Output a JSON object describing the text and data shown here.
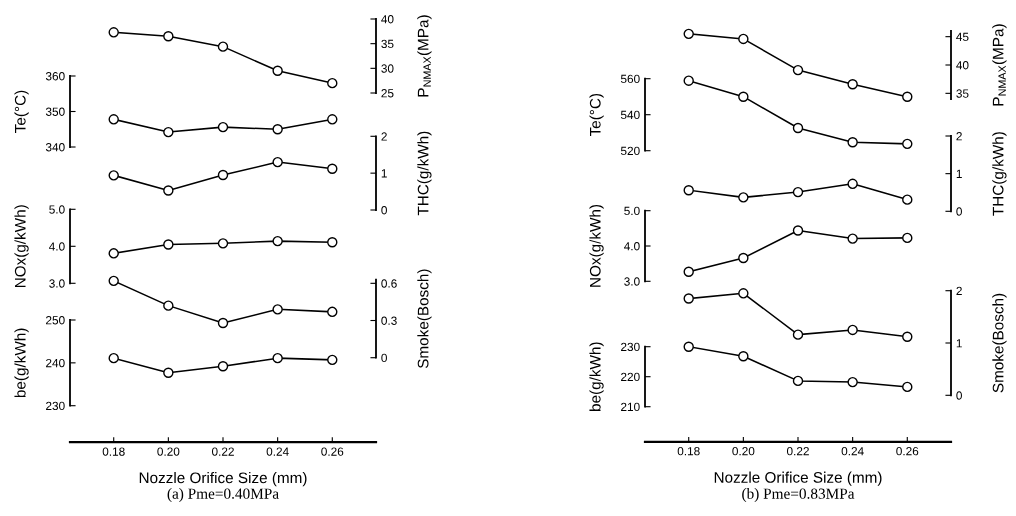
{
  "chart_data": [
    {
      "type": "line",
      "x": [
        0.18,
        0.2,
        0.22,
        0.24,
        0.26
      ],
      "tick_labels": "y",
      "marker": "circle",
      "line_style": "solid",
      "grid": false,
      "legend": false,
      "ylabel": "Te(°C)",
      "ylim": [
        340,
        360
      ],
      "yticks": [
        340,
        350,
        360
      ],
      "series": [
        {
          "color": "#000000",
          "values": [
            347.8,
            344.2,
            345.6,
            345.0,
            347.8
          ]
        }
      ]
    },
    {
      "type": "line",
      "x": [
        0.18,
        0.2,
        0.22,
        0.24,
        0.26
      ],
      "tick_labels": "y",
      "marker": "circle",
      "line_style": "solid",
      "grid": false,
      "legend": false,
      "y2label": "P$_{NMAX}$(MPa)",
      "y2lim": [
        25,
        40
      ],
      "y2ticks": [
        25,
        30,
        35,
        40
      ],
      "series": [
        {
          "axis": "y2",
          "color": "#000000",
          "values": [
            37.3,
            36.5,
            34.4,
            29.5,
            27.0
          ]
        }
      ]
    },
    {
      "type": "line",
      "x": [
        0.18,
        0.2,
        0.22,
        0.24,
        0.26
      ],
      "tick_labels": "y",
      "marker": "circle",
      "line_style": "solid",
      "grid": false,
      "legend": false,
      "y2label": "THC(g/kWh)",
      "y2lim": [
        0,
        2
      ],
      "y2ticks": [
        0,
        1,
        2
      ],
      "series": [
        {
          "axis": "y2",
          "color": "#000000",
          "values": [
            0.94,
            0.53,
            0.95,
            1.3,
            1.12
          ]
        }
      ]
    },
    {
      "type": "line",
      "x": [
        0.18,
        0.2,
        0.22,
        0.24,
        0.26
      ],
      "tick_labels": "y",
      "marker": "circle",
      "line_style": "solid",
      "grid": false,
      "legend": false,
      "ylabel": "NOx(g/kWh)",
      "ylim": [
        3,
        5
      ],
      "yticks": [
        {
          "value": 3,
          "label": "3.0"
        },
        {
          "value": 4,
          "label": "4.0"
        },
        {
          "value": 5,
          "label": "5.0"
        }
      ],
      "series": [
        {
          "color": "#000000",
          "values": [
            3.81,
            4.05,
            4.08,
            4.14,
            4.11
          ]
        }
      ]
    },
    {
      "type": "line",
      "x": [
        0.18,
        0.2,
        0.22,
        0.24,
        0.26
      ],
      "tick_labels": "y",
      "marker": "circle",
      "line_style": "solid",
      "grid": false,
      "legend": false,
      "y2label": "Smoke(Bosch)",
      "y2lim": [
        0,
        0.63
      ],
      "y2ticks": [
        0,
        0.3,
        0.6
      ],
      "series": [
        {
          "axis": "y2",
          "color": "#000000",
          "values": [
            0.62,
            0.42,
            0.28,
            0.39,
            0.37
          ]
        }
      ]
    },
    {
      "type": "line",
      "title": "(a) Pme=0.40MPa",
      "xlabel": "Nozzle Orifice Size (mm)",
      "x": [
        0.18,
        0.2,
        0.22,
        0.24,
        0.26
      ],
      "xlim": [
        0.164,
        0.276
      ],
      "xticks": [
        0.18,
        {
          "value": 0.2,
          "label": "0.20"
        },
        0.22,
        0.24,
        0.26
      ],
      "marker": "circle",
      "line_style": "solid",
      "grid": false,
      "legend": false,
      "ylabel": "be(g/kWh)",
      "ylim": [
        230,
        250
      ],
      "yticks": [
        230,
        240,
        250
      ],
      "series": [
        {
          "color": "#000000",
          "values": [
            241.1,
            237.7,
            239.2,
            241.1,
            240.7
          ]
        }
      ]
    },
    {
      "type": "line",
      "x": [
        0.18,
        0.2,
        0.22,
        0.24,
        0.26
      ],
      "tick_labels": "y",
      "marker": "circle",
      "line_style": "solid",
      "grid": false,
      "legend": false,
      "ylabel": "Te(°C)",
      "ylim": [
        520,
        560
      ],
      "yticks": [
        520,
        540,
        560
      ],
      "series": [
        {
          "color": "#000000",
          "values": [
            558.9,
            550.0,
            532.6,
            524.7,
            523.8
          ]
        }
      ]
    },
    {
      "type": "line",
      "x": [
        0.18,
        0.2,
        0.22,
        0.24,
        0.26
      ],
      "tick_labels": "y",
      "marker": "circle",
      "line_style": "solid",
      "grid": false,
      "legend": false,
      "y2label": "P$_{NMAX}$(MPa)",
      "y2lim": [
        34,
        46
      ],
      "y2ticks": [
        35,
        40,
        45
      ],
      "series": [
        {
          "axis": "y2",
          "color": "#000000",
          "values": [
            45.5,
            44.6,
            39.1,
            36.6,
            34.4
          ]
        }
      ]
    },
    {
      "type": "line",
      "x": [
        0.18,
        0.2,
        0.22,
        0.24,
        0.26
      ],
      "tick_labels": "y",
      "marker": "circle",
      "line_style": "solid",
      "grid": false,
      "legend": false,
      "y2label": "THC(g/kWh)",
      "y2lim": [
        0,
        2
      ],
      "y2ticks": [
        0,
        1,
        2
      ],
      "series": [
        {
          "axis": "y2",
          "color": "#000000",
          "values": [
            0.56,
            0.37,
            0.51,
            0.73,
            0.31
          ]
        }
      ]
    },
    {
      "type": "line",
      "x": [
        0.18,
        0.2,
        0.22,
        0.24,
        0.26
      ],
      "tick_labels": "y",
      "marker": "circle",
      "line_style": "solid",
      "grid": false,
      "legend": false,
      "ylabel": "NOx(g/kWh)",
      "ylim": [
        3,
        5
      ],
      "yticks": [
        {
          "value": 3,
          "label": "3.0"
        },
        {
          "value": 4,
          "label": "4.0"
        },
        {
          "value": 5,
          "label": "5.0"
        }
      ],
      "series": [
        {
          "color": "#000000",
          "values": [
            3.27,
            3.66,
            4.44,
            4.21,
            4.23
          ]
        }
      ]
    },
    {
      "type": "line",
      "x": [
        0.18,
        0.2,
        0.22,
        0.24,
        0.26
      ],
      "tick_labels": "y",
      "marker": "circle",
      "line_style": "solid",
      "grid": false,
      "legend": false,
      "y2label": "Smoke(Bosch)",
      "y2lim": [
        0,
        2
      ],
      "y2ticks": [
        0,
        1,
        2
      ],
      "series": [
        {
          "axis": "y2",
          "color": "#000000",
          "values": [
            1.85,
            1.95,
            1.16,
            1.25,
            1.12
          ]
        }
      ]
    },
    {
      "type": "line",
      "title": "(b) Pme=0.83MPa",
      "xlabel": "Nozzle Orifice Size (mm)",
      "x": [
        0.18,
        0.2,
        0.22,
        0.24,
        0.26
      ],
      "xlim": [
        0.164,
        0.276
      ],
      "xticks": [
        0.18,
        {
          "value": 0.2,
          "label": "0.20"
        },
        0.22,
        0.24,
        0.26
      ],
      "marker": "circle",
      "line_style": "solid",
      "grid": false,
      "legend": false,
      "ylabel": "be(g/kWh)",
      "ylim": [
        210,
        230
      ],
      "yticks": [
        210,
        220,
        230
      ],
      "series": [
        {
          "color": "#000000",
          "values": [
            230.0,
            226.8,
            218.6,
            218.2,
            216.6
          ]
        }
      ]
    }
  ]
}
